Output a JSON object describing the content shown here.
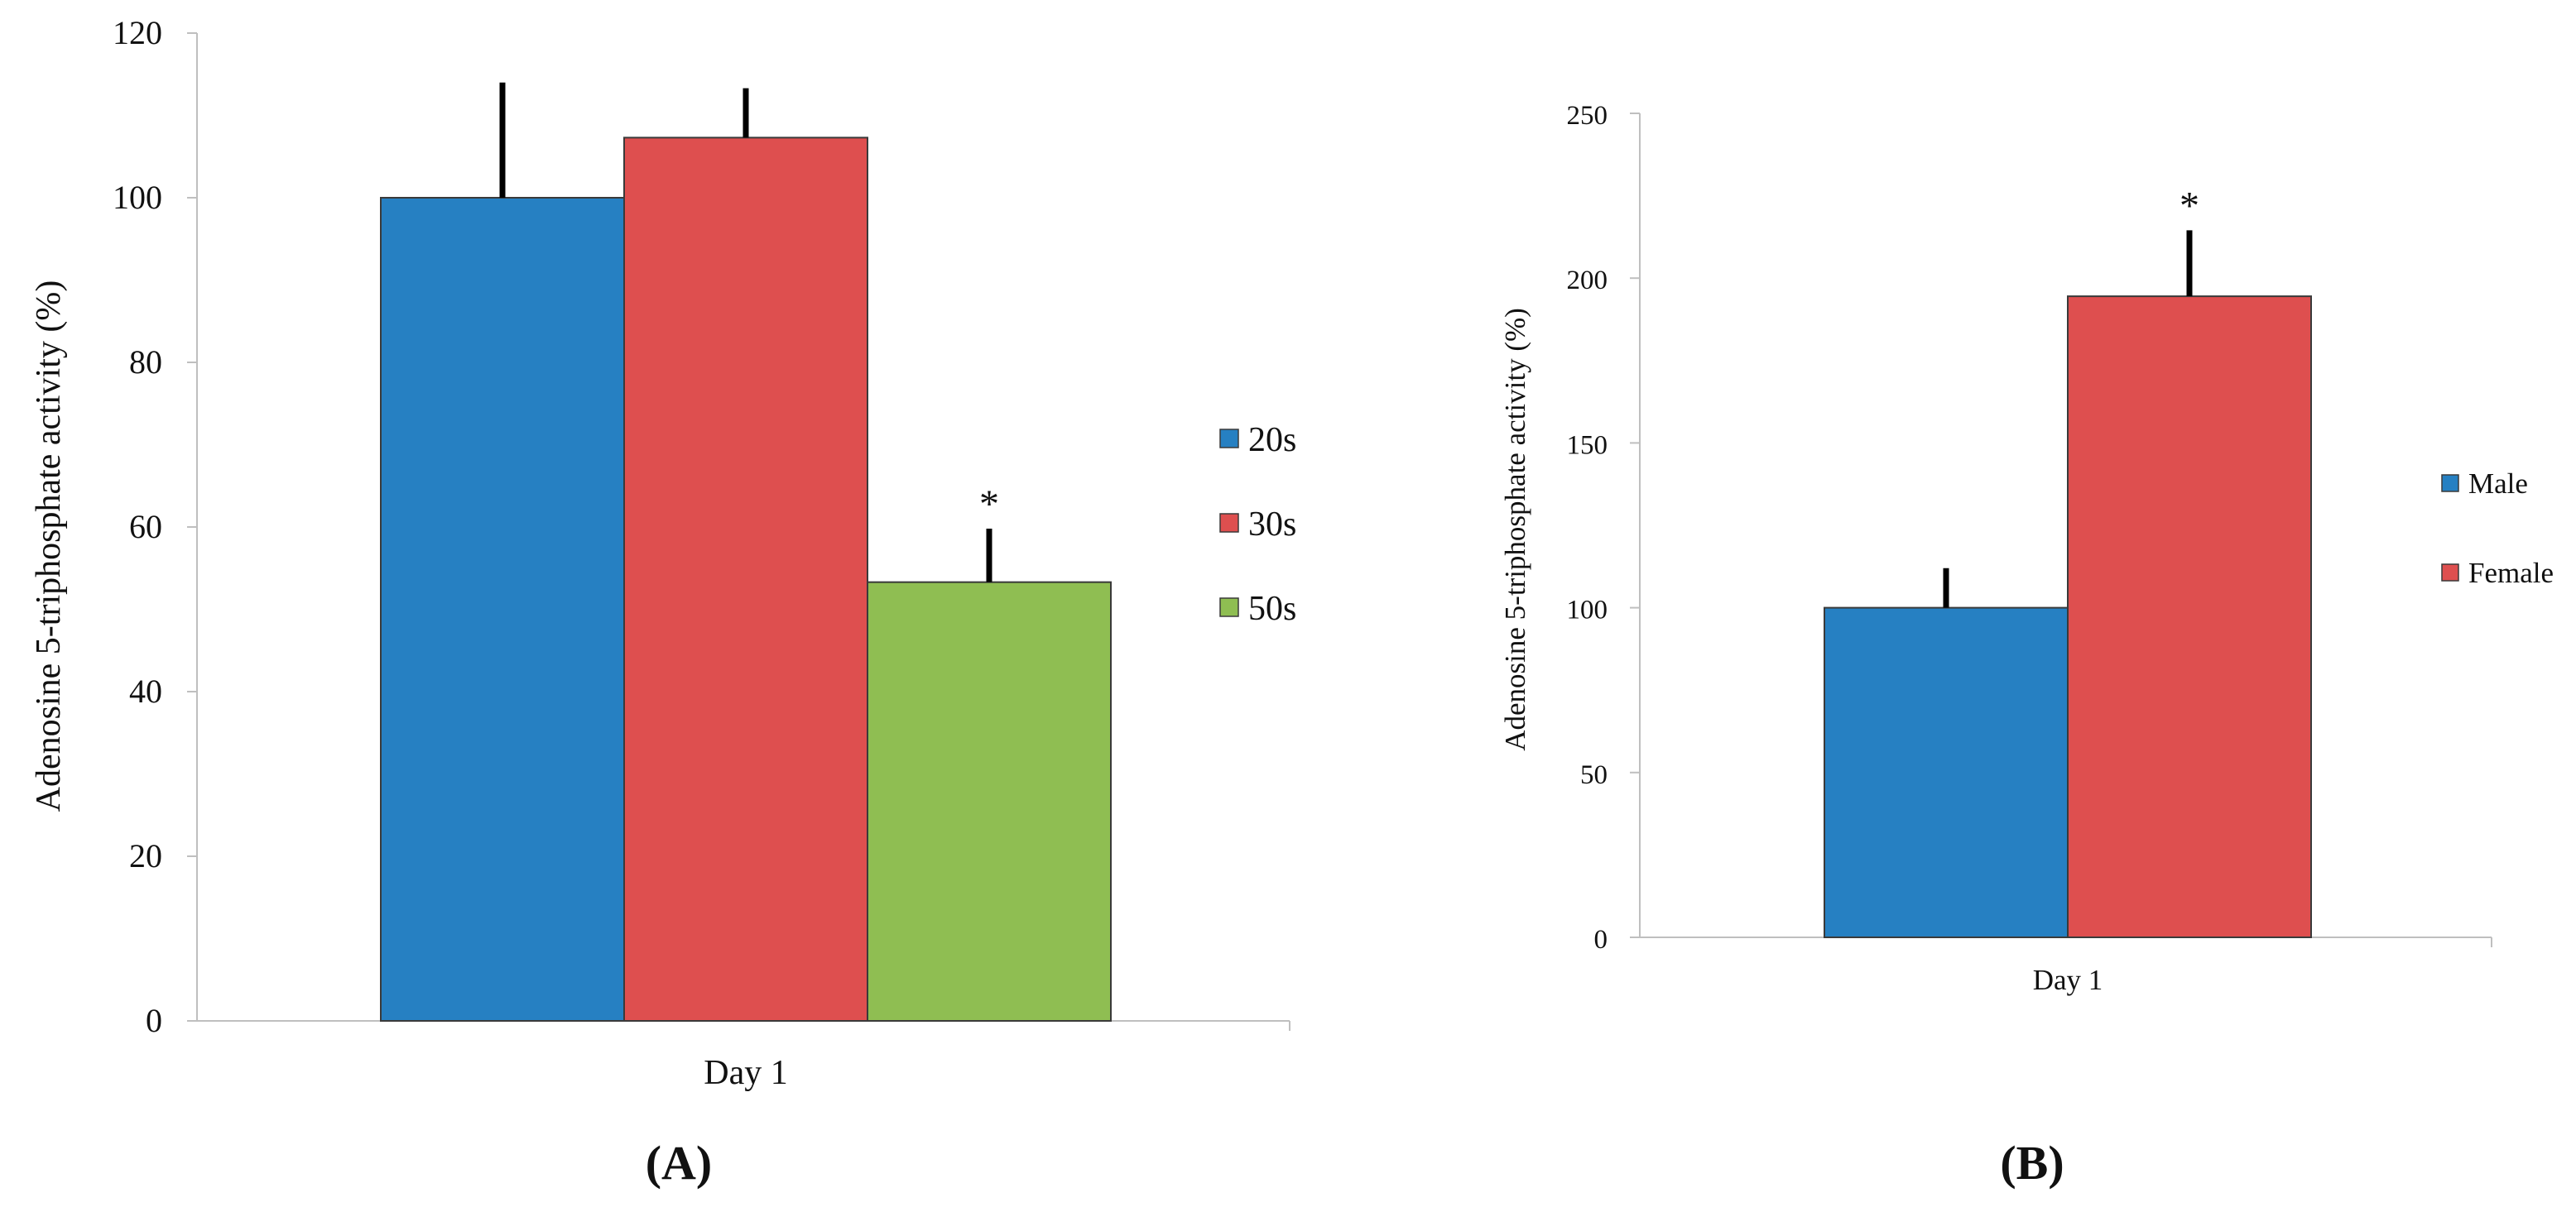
{
  "chart_data": [
    {
      "id": "A",
      "type": "bar",
      "panel_label": "A",
      "categories": [
        "Day 1"
      ],
      "series": [
        {
          "name": "20s",
          "values": [
            100
          ],
          "error": [
            14
          ],
          "color": "#2680c2",
          "annotation": ""
        },
        {
          "name": "30s",
          "values": [
            107.3
          ],
          "error": [
            6
          ],
          "color": "#de4f4f",
          "annotation": ""
        },
        {
          "name": "50s",
          "values": [
            53.3
          ],
          "error": [
            6.5
          ],
          "color": "#8fbe52",
          "annotation": "*"
        }
      ],
      "ylabel": "Adenosine 5-triphosphate activity (%)",
      "xlabel": "",
      "ylim": [
        0,
        120
      ],
      "yticks": [
        "0",
        "20",
        "40",
        "60",
        "80",
        "100",
        "120"
      ],
      "legend_position": "right"
    },
    {
      "id": "B",
      "type": "bar",
      "panel_label": "B",
      "categories": [
        "Day 1"
      ],
      "series": [
        {
          "name": "Male",
          "values": [
            100
          ],
          "error": [
            12
          ],
          "color": "#2680c2",
          "annotation": ""
        },
        {
          "name": "Female",
          "values": [
            194.5
          ],
          "error": [
            20
          ],
          "color": "#de4f4f",
          "annotation": "*"
        }
      ],
      "ylabel": "Adenosine 5-triphosphate activity (%)",
      "xlabel": "",
      "ylim": [
        0,
        250
      ],
      "yticks": [
        "0",
        "50",
        "100",
        "150",
        "200",
        "250"
      ],
      "legend_position": "right"
    }
  ]
}
